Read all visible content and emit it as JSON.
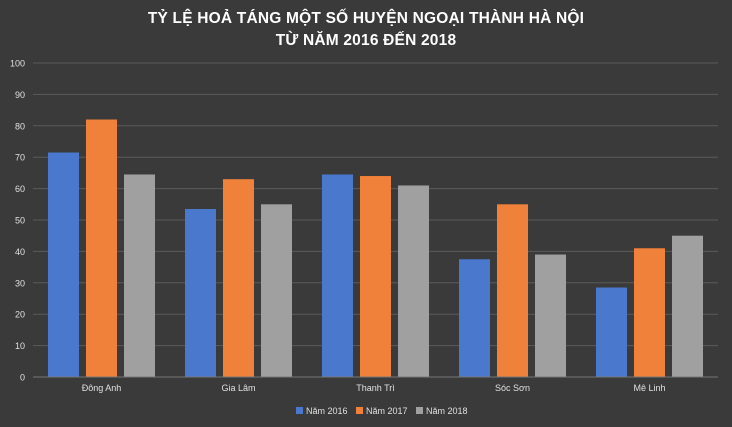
{
  "chart_data": {
    "type": "bar",
    "title_lines": [
      "TỶ LỆ HOẢ TÁNG MỘT SỐ HUYỆN NGOẠI THÀNH HÀ NỘI",
      "TỪ NĂM 2016 ĐẾN 2018"
    ],
    "categories": [
      "Đông Anh",
      "Gia Lâm",
      "Thanh Trì",
      "Sóc Sơn",
      "Mê Linh"
    ],
    "series": [
      {
        "name": "Năm 2016",
        "color": "#4a78cc",
        "values": [
          71.5,
          53.5,
          64.5,
          37.5,
          28.5
        ]
      },
      {
        "name": "Năm 2017",
        "color": "#f0813a",
        "values": [
          82,
          63,
          64,
          55,
          41
        ]
      },
      {
        "name": "Năm 2018",
        "color": "#a0a0a0",
        "values": [
          64.5,
          55,
          61,
          39,
          45
        ]
      }
    ],
    "ylim": [
      0,
      100
    ],
    "y_ticks": [
      0,
      10,
      20,
      30,
      40,
      50,
      60,
      70,
      80,
      90,
      100
    ],
    "grid": true,
    "legend_position": "bottom"
  }
}
